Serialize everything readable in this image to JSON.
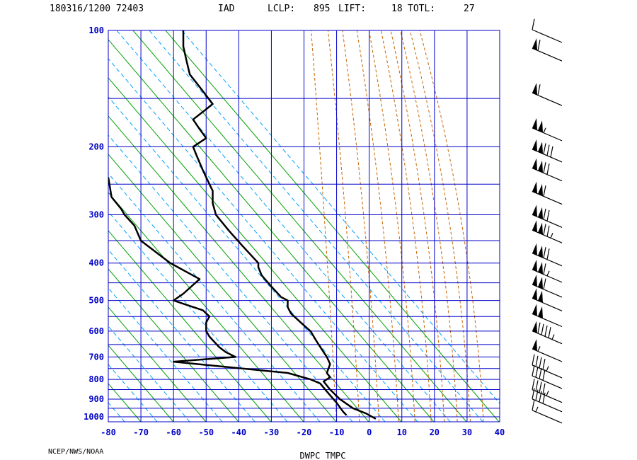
{
  "header": {
    "station_time": "180316/1200 72403",
    "station_id": "IAD",
    "lclp_label": "LCLP:",
    "lclp_value": "895",
    "lift_label": "LIFT:",
    "lift_value": "18",
    "totl_label": "TOTL:",
    "totl_value": "27"
  },
  "credit": "NCEP/NWS/NOAA",
  "chart_data": {
    "type": "line",
    "title": "",
    "xlabel": "DWPC TMPC",
    "ylabel": "",
    "xlim": [
      -80,
      40
    ],
    "ylim": [
      1000,
      100
    ],
    "y_scale": "log",
    "x_ticks": [
      -80,
      -70,
      -60,
      -50,
      -40,
      -30,
      -20,
      -10,
      0,
      10,
      20,
      30,
      40
    ],
    "y_ticks": [
      100,
      200,
      300,
      400,
      500,
      600,
      700,
      800,
      900,
      1000
    ],
    "grid": true,
    "colors": {
      "grid": "#0000c8",
      "dry_adiabat": "#00a000",
      "moist_adiabat": "#c86400",
      "mixing_ratio": "#00a0ff",
      "profile": "#000000"
    },
    "series": [
      {
        "name": "TMPC",
        "points": [
          [
            2,
            1012
          ],
          [
            -1,
            980
          ],
          [
            -5,
            950
          ],
          [
            -9,
            900
          ],
          [
            -12,
            850
          ],
          [
            -14,
            810
          ],
          [
            -12,
            790
          ],
          [
            -13,
            770
          ],
          [
            -12,
            730
          ],
          [
            -13,
            700
          ],
          [
            -14,
            680
          ],
          [
            -16,
            640
          ],
          [
            -18,
            600
          ],
          [
            -21,
            570
          ],
          [
            -24,
            540
          ],
          [
            -25,
            520
          ],
          [
            -25,
            500
          ],
          [
            -27,
            490
          ],
          [
            -30,
            460
          ],
          [
            -33,
            430
          ],
          [
            -34,
            410
          ],
          [
            -34,
            400
          ],
          [
            -39,
            360
          ],
          [
            -43,
            330
          ],
          [
            -47,
            300
          ],
          [
            -48,
            280
          ],
          [
            -48,
            260
          ],
          [
            -49,
            250
          ],
          [
            -51,
            230
          ],
          [
            -53,
            210
          ],
          [
            -54,
            200
          ],
          [
            -50,
            190
          ],
          [
            -52,
            180
          ],
          [
            -54,
            170
          ],
          [
            -50,
            160
          ],
          [
            -48,
            155
          ],
          [
            -52,
            140
          ],
          [
            -55,
            130
          ],
          [
            -56,
            120
          ],
          [
            -57,
            110
          ],
          [
            -57,
            100
          ]
        ]
      },
      {
        "name": "DWPC",
        "points": [
          [
            -7,
            990
          ],
          [
            -8,
            970
          ],
          [
            -10,
            920
          ],
          [
            -13,
            860
          ],
          [
            -15,
            820
          ],
          [
            -18,
            800
          ],
          [
            -25,
            770
          ],
          [
            -60,
            720
          ],
          [
            -41,
            700
          ],
          [
            -44,
            680
          ],
          [
            -46,
            660
          ],
          [
            -49,
            620
          ],
          [
            -50,
            600
          ],
          [
            -50,
            570
          ],
          [
            -49,
            550
          ],
          [
            -51,
            530
          ],
          [
            -60,
            500
          ],
          [
            -57,
            480
          ],
          [
            -52,
            440
          ],
          [
            -61,
            400
          ],
          [
            -70,
            350
          ],
          [
            -72,
            320
          ],
          [
            -75,
            300
          ],
          [
            -76,
            290
          ],
          [
            -79,
            270
          ],
          [
            -80,
            240
          ]
        ]
      }
    ],
    "wind_barbs": [
      {
        "p": 995,
        "kt": 15,
        "dir": 290
      },
      {
        "p": 930,
        "kt": 40,
        "dir": 290
      },
      {
        "p": 880,
        "kt": 45,
        "dir": 290
      },
      {
        "p": 810,
        "kt": 40,
        "dir": 300
      },
      {
        "p": 760,
        "kt": 45,
        "dir": 300
      },
      {
        "p": 690,
        "kt": 55,
        "dir": 300
      },
      {
        "p": 620,
        "kt": 95,
        "dir": 290
      },
      {
        "p": 560,
        "kt": 100,
        "dir": 290
      },
      {
        "p": 510,
        "kt": 100,
        "dir": 285
      },
      {
        "p": 470,
        "kt": 110,
        "dir": 285
      },
      {
        "p": 430,
        "kt": 115,
        "dir": 285
      },
      {
        "p": 390,
        "kt": 120,
        "dir": 285
      },
      {
        "p": 340,
        "kt": 125,
        "dir": 285
      },
      {
        "p": 310,
        "kt": 120,
        "dir": 285
      },
      {
        "p": 270,
        "kt": 110,
        "dir": 285
      },
      {
        "p": 235,
        "kt": 120,
        "dir": 285
      },
      {
        "p": 210,
        "kt": 130,
        "dir": 285
      },
      {
        "p": 185,
        "kt": 105,
        "dir": 285
      },
      {
        "p": 150,
        "kt": 60,
        "dir": 285
      },
      {
        "p": 115,
        "kt": 60,
        "dir": 290
      },
      {
        "p": 103,
        "kt": 10,
        "dir": 290
      }
    ]
  }
}
